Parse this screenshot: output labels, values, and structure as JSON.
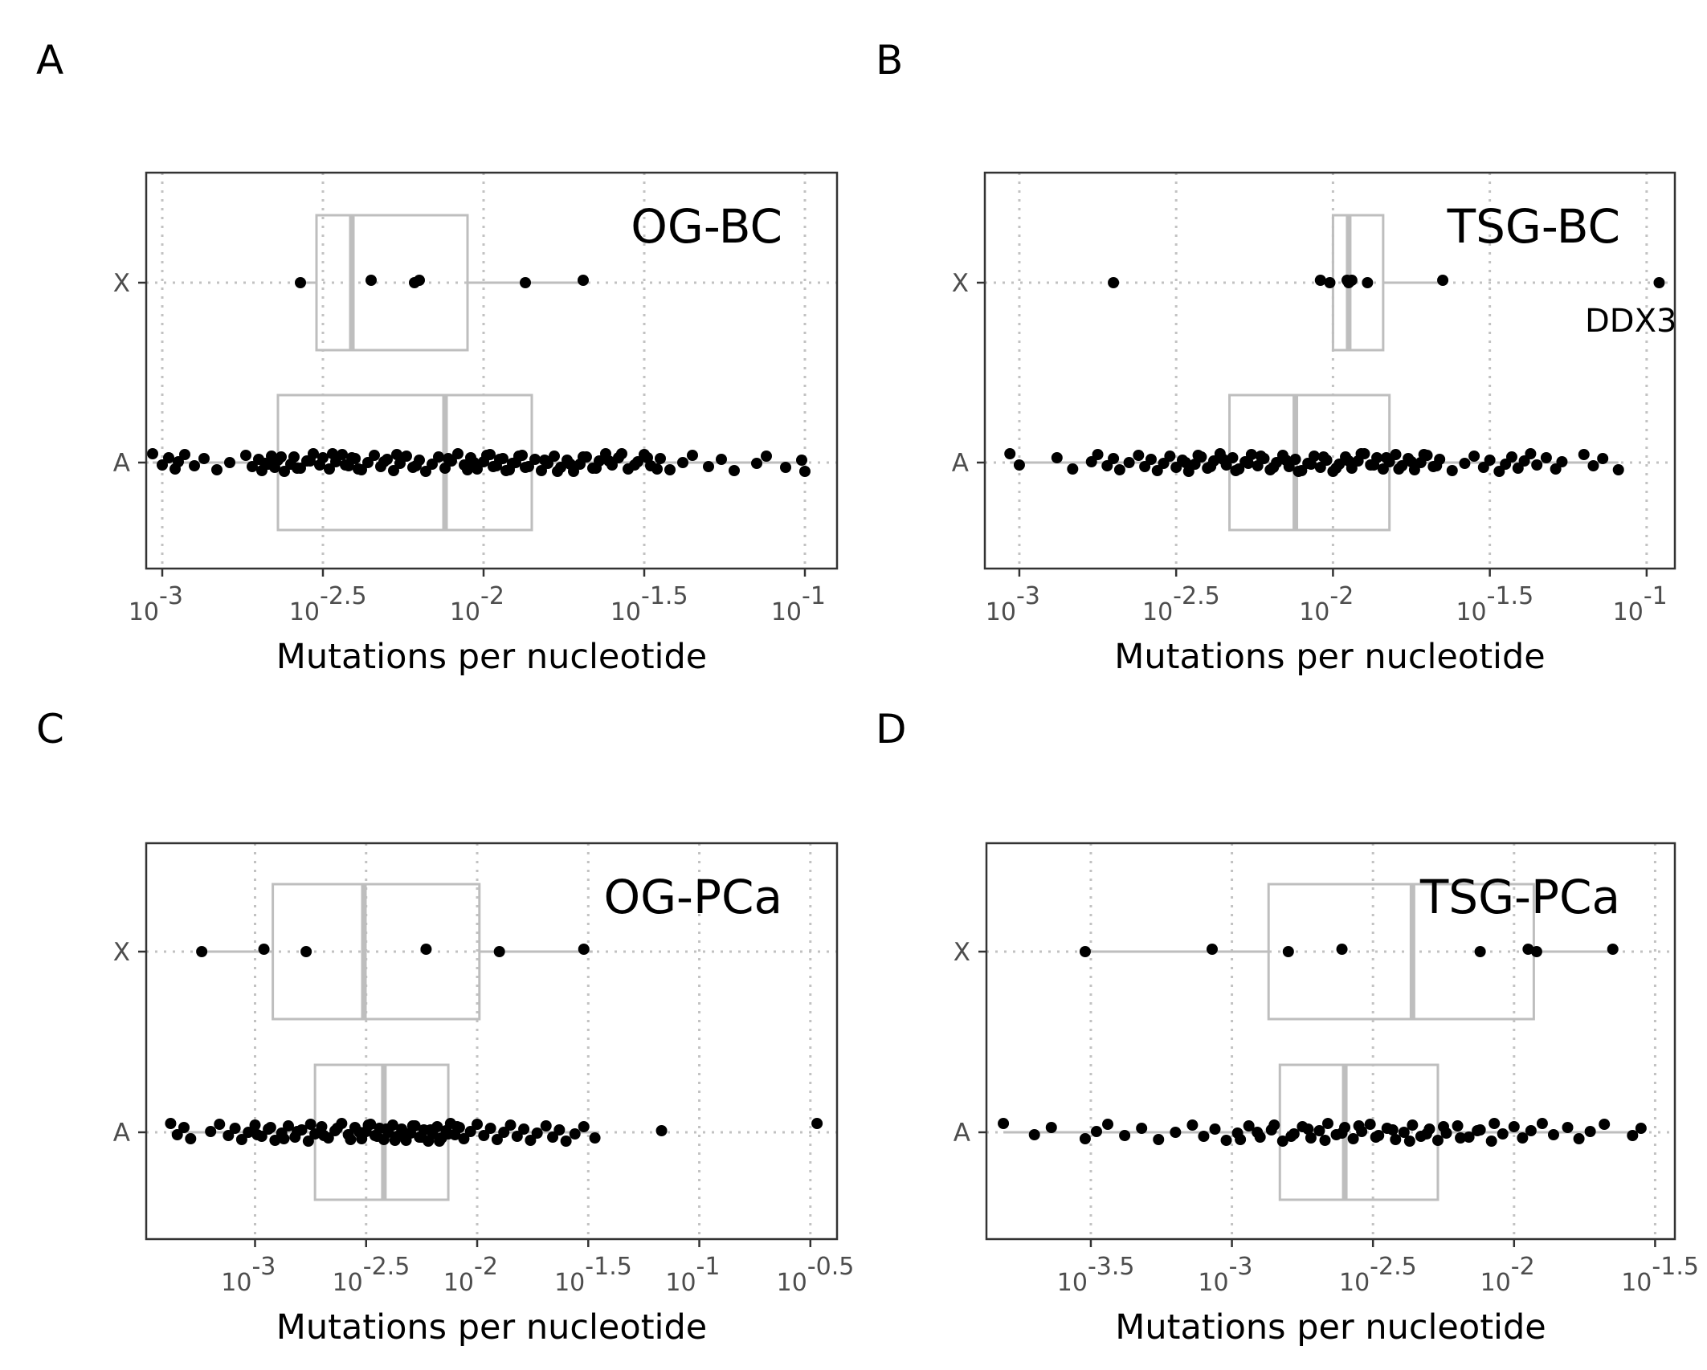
{
  "chart_data": [
    {
      "panel": "A",
      "label": "OG-BC",
      "type": "boxplot",
      "xlabel": "Mutations per nucleotide",
      "x_scale": "log10",
      "xlim": [
        -3.05,
        -0.9
      ],
      "x_ticks": [
        -3,
        -2.5,
        -2,
        -1.5,
        -1
      ],
      "x_tick_labels": [
        "-3",
        "-2.5",
        "-2",
        "-1.5",
        "-1"
      ],
      "categories": [
        "X",
        "A"
      ],
      "boxes": [
        {
          "category": "X",
          "q1": -2.52,
          "median": -2.41,
          "q3": -2.05,
          "whisker_low": -2.58,
          "whisker_high": -1.7
        },
        {
          "category": "A",
          "q1": -2.64,
          "median": -2.12,
          "q3": -1.85,
          "whisker_low": -3.03,
          "whisker_high": -1.0
        }
      ],
      "points": [
        {
          "category": "X",
          "values": [
            -2.57,
            -2.35,
            -2.215,
            -2.2,
            -1.87,
            -1.69
          ]
        },
        {
          "category": "A",
          "values": [
            -3.03,
            -3.0,
            -2.98,
            -2.96,
            -2.95,
            -2.93,
            -2.9,
            -2.87,
            -2.83,
            -2.79,
            -2.74,
            -2.72,
            -2.7,
            -2.69,
            -2.68,
            -2.66,
            -2.65,
            -2.64,
            -2.62,
            -2.6,
            -2.59,
            -2.57,
            -2.55,
            -2.53,
            -2.51,
            -2.5,
            -2.48,
            -2.46,
            -2.44,
            -2.42,
            -2.4,
            -2.38,
            -2.36,
            -2.34,
            -2.32,
            -2.3,
            -2.28,
            -2.26,
            -2.24,
            -2.22,
            -2.2,
            -2.18,
            -2.16,
            -2.14,
            -2.12,
            -2.1,
            -2.08,
            -2.06,
            -2.04,
            -2.02,
            -2.0,
            -1.98,
            -1.96,
            -1.94,
            -1.92,
            -1.9,
            -1.88,
            -1.86,
            -1.84,
            -1.82,
            -1.8,
            -1.78,
            -1.76,
            -1.74,
            -1.72,
            -1.7,
            -1.68,
            -1.66,
            -1.64,
            -1.62,
            -1.6,
            -1.58,
            -1.55,
            -1.52,
            -1.5,
            -1.48,
            -1.45,
            -1.42,
            -1.38,
            -1.35,
            -1.3,
            -1.26,
            -1.22,
            -1.15,
            -1.12,
            -1.06,
            -1.01,
            -1.0,
            -2.67,
            -2.63,
            -2.58,
            -2.54,
            -2.47,
            -2.43,
            -2.41,
            -2.39,
            -2.31,
            -2.27,
            -2.21,
            -2.11,
            -2.05,
            -2.03,
            -1.99,
            -1.97,
            -1.95,
            -1.93,
            -1.91,
            -1.89,
            -1.87,
            -1.81,
            -1.77,
            -1.73,
            -1.69,
            -1.65,
            -1.61,
            -1.57,
            -1.53,
            -1.49,
            -1.46
          ]
        }
      ]
    },
    {
      "panel": "B",
      "label": "TSG-BC",
      "type": "boxplot",
      "xlabel": "Mutations per nucleotide",
      "x_scale": "log10",
      "xlim": [
        -3.11,
        -0.91
      ],
      "x_ticks": [
        -3,
        -2.5,
        -2,
        -1.5,
        -1
      ],
      "x_tick_labels": [
        "-3",
        "-2.5",
        "-2",
        "-1.5",
        "-1"
      ],
      "categories": [
        "X",
        "A"
      ],
      "boxes": [
        {
          "category": "X",
          "q1": -2.0,
          "median": -1.95,
          "q3": -1.84,
          "whisker_low": -2.04,
          "whisker_high": -1.65
        },
        {
          "category": "A",
          "q1": -2.33,
          "median": -2.12,
          "q3": -1.82,
          "whisker_low": -3.03,
          "whisker_high": -1.09
        }
      ],
      "points": [
        {
          "category": "X",
          "values": [
            -2.7,
            -2.04,
            -2.01,
            -1.955,
            -1.95,
            -1.94,
            -1.89,
            -1.65,
            -0.96
          ]
        },
        {
          "category": "A",
          "values": [
            -3.03,
            -3.0,
            -2.88,
            -2.83,
            -2.77,
            -2.75,
            -2.72,
            -2.7,
            -2.68,
            -2.65,
            -2.62,
            -2.6,
            -2.58,
            -2.56,
            -2.54,
            -2.52,
            -2.5,
            -2.48,
            -2.46,
            -2.44,
            -2.42,
            -2.4,
            -2.38,
            -2.36,
            -2.34,
            -2.32,
            -2.3,
            -2.28,
            -2.26,
            -2.24,
            -2.22,
            -2.2,
            -2.18,
            -2.16,
            -2.14,
            -2.12,
            -2.1,
            -2.08,
            -2.06,
            -2.04,
            -2.02,
            -2.0,
            -1.98,
            -1.96,
            -1.94,
            -1.92,
            -1.9,
            -1.88,
            -1.86,
            -1.84,
            -1.82,
            -1.8,
            -1.78,
            -1.76,
            -1.74,
            -1.72,
            -1.7,
            -1.68,
            -1.66,
            -1.62,
            -1.58,
            -1.55,
            -1.52,
            -1.5,
            -1.47,
            -1.45,
            -1.43,
            -1.41,
            -1.39,
            -1.37,
            -1.35,
            -1.32,
            -1.29,
            -1.27,
            -1.2,
            -1.17,
            -1.14,
            -1.09,
            -2.47,
            -2.43,
            -2.39,
            -2.35,
            -2.31,
            -2.27,
            -2.23,
            -2.19,
            -2.15,
            -2.11,
            -2.07,
            -2.03,
            -1.99,
            -1.95,
            -1.91,
            -1.87,
            -1.83,
            -1.79,
            -1.75,
            -1.71,
            -1.67
          ]
        }
      ],
      "annotations": [
        {
          "text": "DDX3",
          "category": "X"
        }
      ]
    },
    {
      "panel": "C",
      "label": "OG-PCa",
      "type": "boxplot",
      "xlabel": "Mutations per nucleotide",
      "x_scale": "log10",
      "xlim": [
        -3.49,
        -0.38
      ],
      "x_ticks": [
        -3,
        -2.5,
        -2,
        -1.5,
        -1,
        -0.5
      ],
      "x_tick_labels": [
        "-3",
        "-2.5",
        "-2",
        "-1.5",
        "-1",
        "-0.5"
      ],
      "categories": [
        "X",
        "A"
      ],
      "boxes": [
        {
          "category": "X",
          "q1": -2.92,
          "median": -2.51,
          "q3": -1.99,
          "whisker_low": -3.24,
          "whisker_high": -1.48
        },
        {
          "category": "A",
          "q1": -2.73,
          "median": -2.42,
          "q3": -2.13,
          "whisker_low": -3.38,
          "whisker_high": -1.45
        }
      ],
      "points": [
        {
          "category": "X",
          "values": [
            -3.24,
            -2.96,
            -2.77,
            -2.23,
            -1.9,
            -1.52
          ]
        },
        {
          "category": "A",
          "values": [
            -3.38,
            -3.35,
            -3.32,
            -3.29,
            -3.2,
            -3.16,
            -3.12,
            -3.09,
            -3.06,
            -3.03,
            -3.0,
            -2.97,
            -2.94,
            -2.91,
            -2.88,
            -2.85,
            -2.82,
            -2.79,
            -2.76,
            -2.73,
            -2.7,
            -2.67,
            -2.64,
            -2.61,
            -2.58,
            -2.55,
            -2.52,
            -2.5,
            -2.48,
            -2.46,
            -2.44,
            -2.42,
            -2.4,
            -2.38,
            -2.36,
            -2.34,
            -2.32,
            -2.3,
            -2.28,
            -2.26,
            -2.24,
            -2.22,
            -2.2,
            -2.18,
            -2.16,
            -2.14,
            -2.12,
            -2.1,
            -2.08,
            -2.06,
            -2.03,
            -2.0,
            -1.97,
            -1.94,
            -1.91,
            -1.88,
            -1.85,
            -1.82,
            -1.79,
            -1.76,
            -1.73,
            -1.69,
            -1.66,
            -1.63,
            -1.6,
            -1.56,
            -1.52,
            -1.47,
            -1.17,
            -0.47,
            -2.99,
            -2.93,
            -2.87,
            -2.81,
            -2.75,
            -2.69,
            -2.63,
            -2.57,
            -2.53,
            -2.49,
            -2.45,
            -2.41,
            -2.37,
            -2.33,
            -2.29,
            -2.25,
            -2.21,
            -2.17,
            -2.13,
            -2.09
          ]
        }
      ]
    },
    {
      "panel": "D",
      "label": "TSG-PCa",
      "type": "boxplot",
      "xlabel": "Mutations per nucleotide",
      "x_scale": "log10",
      "xlim": [
        -3.87,
        -1.43
      ],
      "x_ticks": [
        -3.5,
        -3,
        -2.5,
        -2,
        -1.5
      ],
      "x_tick_labels": [
        "-3.5",
        "-3",
        "-2.5",
        "-2",
        "-1.5"
      ],
      "categories": [
        "X",
        "A"
      ],
      "boxes": [
        {
          "category": "X",
          "q1": -2.87,
          "median": -2.36,
          "q3": -1.93,
          "whisker_low": -3.52,
          "whisker_high": -1.65
        },
        {
          "category": "A",
          "q1": -2.83,
          "median": -2.6,
          "q3": -2.27,
          "whisker_low": -3.81,
          "whisker_high": -1.55
        }
      ],
      "points": [
        {
          "category": "X",
          "values": [
            -3.52,
            -3.07,
            -2.8,
            -2.61,
            -2.12,
            -1.95,
            -1.92,
            -1.65
          ]
        },
        {
          "category": "A",
          "values": [
            -3.81,
            -3.7,
            -3.64,
            -3.52,
            -3.48,
            -3.44,
            -3.38,
            -3.32,
            -3.26,
            -3.2,
            -3.14,
            -3.1,
            -3.06,
            -3.02,
            -2.98,
            -2.94,
            -2.9,
            -2.86,
            -2.82,
            -2.78,
            -2.75,
            -2.72,
            -2.69,
            -2.66,
            -2.63,
            -2.6,
            -2.57,
            -2.54,
            -2.51,
            -2.48,
            -2.45,
            -2.42,
            -2.39,
            -2.36,
            -2.33,
            -2.3,
            -2.27,
            -2.24,
            -2.2,
            -2.16,
            -2.12,
            -2.08,
            -2.04,
            -2.0,
            -1.97,
            -1.94,
            -1.9,
            -1.86,
            -1.81,
            -1.77,
            -1.73,
            -1.68,
            -1.58,
            -1.55,
            -2.97,
            -2.91,
            -2.85,
            -2.79,
            -2.73,
            -2.67,
            -2.61,
            -2.55,
            -2.49,
            -2.43,
            -2.37,
            -2.31,
            -2.25,
            -2.19,
            -2.13,
            -2.07
          ]
        }
      ]
    }
  ]
}
